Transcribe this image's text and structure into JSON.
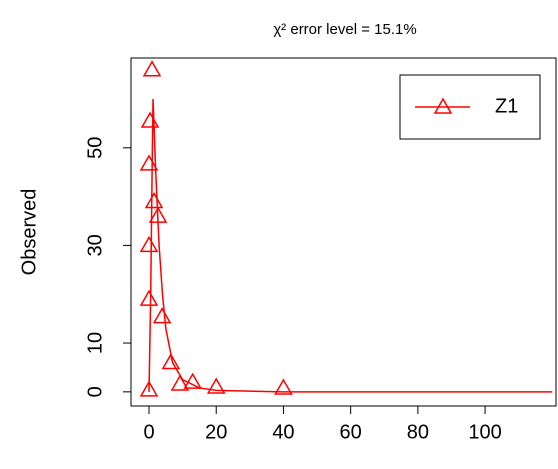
{
  "chart_data": {
    "type": "scatter",
    "title": "χ² error level = 15.1%",
    "ylabel": "Observed",
    "xlim": [
      -5.36,
      121.1
    ],
    "ylim": [
      -2.9,
      68.4
    ],
    "xticks": [
      0,
      20,
      40,
      60,
      80,
      100
    ],
    "yticks": [
      0,
      10,
      30,
      50
    ],
    "legend": "top-right",
    "series": [
      {
        "name": "Z1",
        "color": "#ff0000",
        "x": [
          0.9,
          0.3,
          0,
          1.5,
          2.7,
          0,
          0,
          3.9,
          6.5,
          9.2,
          13,
          20,
          40,
          0
        ],
        "values": [
          66,
          55.5,
          46.7,
          39,
          36,
          30,
          19,
          15.4,
          6,
          1.6,
          2,
          1,
          0.8,
          0.4
        ]
      }
    ],
    "fit": {
      "x": [
        0,
        0.5,
        1,
        1.2,
        2,
        3,
        4,
        5,
        7,
        10,
        15,
        20,
        40,
        60,
        80,
        100,
        120
      ],
      "values": [
        0,
        20,
        50,
        60,
        45,
        30,
        20,
        13,
        6,
        2.5,
        0.8,
        0.3,
        0,
        0,
        0,
        0,
        0
      ]
    }
  }
}
